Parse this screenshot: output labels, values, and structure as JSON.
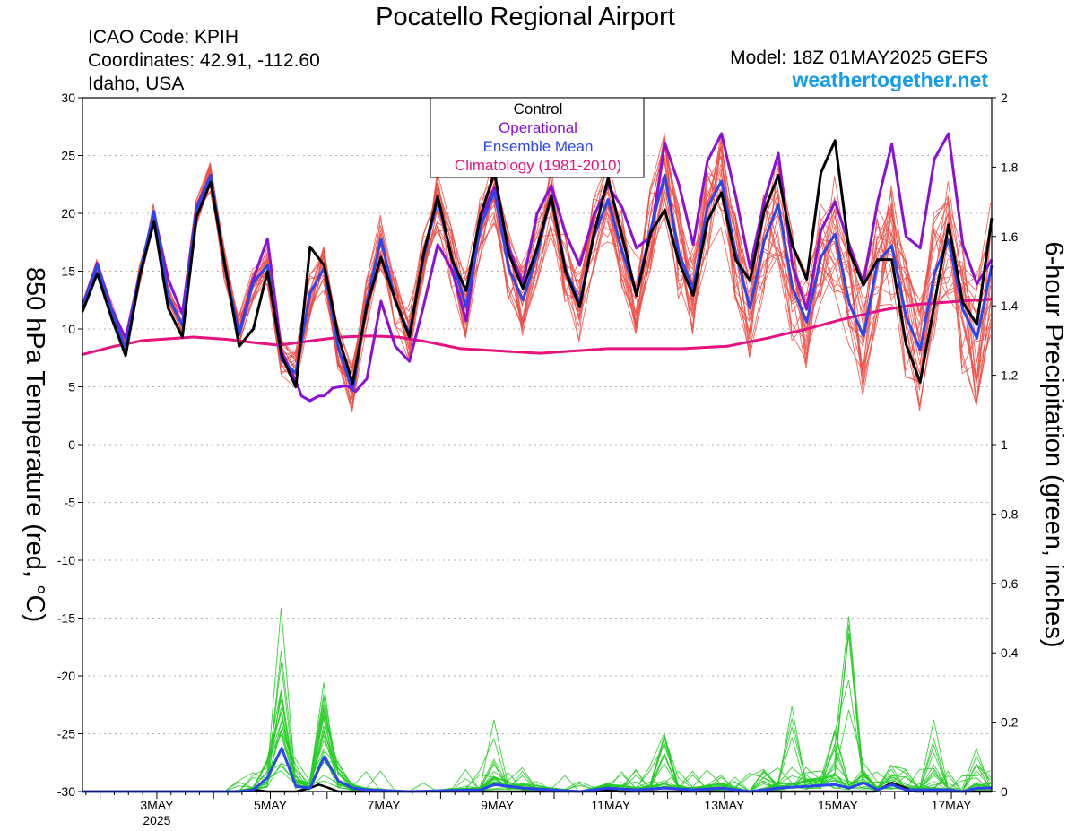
{
  "chart_data": {
    "type": "line",
    "title": "Pocatello Regional Airport",
    "info_lines": [
      "ICAO Code: KPIH",
      "Coordinates: 42.91, -112.60",
      "Idaho, USA"
    ],
    "model_label": "Model: 18Z 01MAY2025 GEFS",
    "site_label": "weathertogether.net",
    "ylabel_left": "850 hPa Temperature (red, °C)",
    "ylabel_right": "6-hour Precipitation (green, inches)",
    "ylim_left": [
      -30,
      30
    ],
    "ylim_right": [
      0,
      2
    ],
    "yticks_left": [
      "30",
      "25",
      "20",
      "15",
      "10",
      "5",
      "0",
      "-5",
      "-10",
      "-15",
      "-20",
      "-25",
      "-30"
    ],
    "yticks_right": [
      "2",
      "1.8",
      "1.6",
      "1.4",
      "1.2",
      "1",
      "0.8",
      "0.6",
      "0.4",
      "0.2",
      "0"
    ],
    "x_ticks": [
      {
        "label": "3MAY",
        "sub": "2025",
        "t": 1.25
      },
      {
        "label": "5MAY",
        "sub": "",
        "t": 3.25
      },
      {
        "label": "7MAY",
        "sub": "",
        "t": 5.25
      },
      {
        "label": "9MAY",
        "sub": "",
        "t": 7.25
      },
      {
        "label": "11MAY",
        "sub": "",
        "t": 9.25
      },
      {
        "label": "13MAY",
        "sub": "",
        "t": 11.25
      },
      {
        "label": "15MAY",
        "sub": "",
        "t": 13.25
      },
      {
        "label": "17MAY",
        "sub": "",
        "t": 15.25
      }
    ],
    "x_range_days": [
      -0.06,
      15.96
    ],
    "grid": "dotted horizontal",
    "legend": {
      "position": "top-center",
      "entries": [
        "Control",
        "Operational",
        "Ensemble Mean",
        "Climatology (1981-2010)"
      ]
    },
    "colors": {
      "control": "#000000",
      "operational": "#8a10d8",
      "mean": "#2b45f0",
      "climatology": "#e8117f",
      "members_temp": "#f04b43",
      "members_precip": "#22cc22",
      "site": "#139bf0"
    },
    "series": [
      {
        "name": "Control",
        "points": [
          [
            -0.06,
            11.5
          ],
          [
            0.2,
            14.8
          ],
          [
            0.45,
            11
          ],
          [
            0.7,
            7.7
          ],
          [
            0.95,
            14.6
          ],
          [
            1.2,
            19.3
          ],
          [
            1.45,
            11.8
          ],
          [
            1.7,
            9.3
          ],
          [
            1.95,
            19.7
          ],
          [
            2.2,
            22.7
          ],
          [
            2.45,
            15.5
          ],
          [
            2.7,
            8.5
          ],
          [
            2.95,
            10
          ],
          [
            3.2,
            15
          ],
          [
            3.45,
            7.7
          ],
          [
            3.7,
            5
          ],
          [
            3.95,
            17.1
          ],
          [
            4.2,
            15.5
          ],
          [
            4.45,
            9.3
          ],
          [
            4.7,
            5.3
          ],
          [
            4.95,
            12
          ],
          [
            5.2,
            16.2
          ],
          [
            5.45,
            12.5
          ],
          [
            5.7,
            9.3
          ],
          [
            5.95,
            16.5
          ],
          [
            6.2,
            21.5
          ],
          [
            6.45,
            16
          ],
          [
            6.7,
            13.3
          ],
          [
            6.95,
            19.8
          ],
          [
            7.2,
            23.5
          ],
          [
            7.45,
            16.5
          ],
          [
            7.7,
            13.5
          ],
          [
            7.95,
            17
          ],
          [
            8.2,
            21.5
          ],
          [
            8.45,
            15
          ],
          [
            8.7,
            11.9
          ],
          [
            8.95,
            18.2
          ],
          [
            9.2,
            23
          ],
          [
            9.45,
            18
          ],
          [
            9.7,
            12.9
          ],
          [
            9.95,
            18.3
          ],
          [
            10.2,
            20.3
          ],
          [
            10.45,
            15.8
          ],
          [
            10.7,
            12.9
          ],
          [
            10.95,
            19.3
          ],
          [
            11.2,
            21.8
          ],
          [
            11.45,
            16
          ],
          [
            11.7,
            14.2
          ],
          [
            11.95,
            20.2
          ],
          [
            12.2,
            23.3
          ],
          [
            12.45,
            17.2
          ],
          [
            12.7,
            14.3
          ],
          [
            12.95,
            23.5
          ],
          [
            13.2,
            26.3
          ],
          [
            13.45,
            16.7
          ],
          [
            13.7,
            13.8
          ],
          [
            13.95,
            16
          ],
          [
            14.2,
            16
          ],
          [
            14.45,
            8.7
          ],
          [
            14.7,
            5.4
          ],
          [
            14.95,
            12.2
          ],
          [
            15.2,
            19
          ],
          [
            15.45,
            12.3
          ],
          [
            15.7,
            10.4
          ],
          [
            15.96,
            19.6
          ]
        ]
      },
      {
        "name": "Operational",
        "points": [
          [
            -0.06,
            12
          ],
          [
            0.2,
            15.7
          ],
          [
            0.45,
            11.8
          ],
          [
            0.7,
            9.2
          ],
          [
            0.95,
            14.8
          ],
          [
            1.2,
            20
          ],
          [
            1.45,
            14.3
          ],
          [
            1.7,
            11.3
          ],
          [
            1.95,
            20.5
          ],
          [
            2.2,
            23.3
          ],
          [
            2.45,
            15.3
          ],
          [
            2.7,
            9.6
          ],
          [
            2.95,
            14.3
          ],
          [
            3.2,
            17.8
          ],
          [
            3.45,
            8
          ],
          [
            3.7,
            5.5
          ],
          [
            3.8,
            4.2
          ],
          [
            3.95,
            3.8
          ],
          [
            4.1,
            4.2
          ],
          [
            4.2,
            4.2
          ],
          [
            4.35,
            4.9
          ],
          [
            4.6,
            5.1
          ],
          [
            4.75,
            4.6
          ],
          [
            4.95,
            5.7
          ],
          [
            5.2,
            12.4
          ],
          [
            5.45,
            8.5
          ],
          [
            5.7,
            7.2
          ],
          [
            5.95,
            12
          ],
          [
            6.2,
            17.3
          ],
          [
            6.45,
            15.1
          ],
          [
            6.7,
            10.7
          ],
          [
            6.95,
            19.5
          ],
          [
            7.2,
            22.2
          ],
          [
            7.45,
            17
          ],
          [
            7.7,
            14
          ],
          [
            7.95,
            20
          ],
          [
            8.2,
            22.4
          ],
          [
            8.45,
            18.3
          ],
          [
            8.7,
            15.5
          ],
          [
            8.95,
            19.8
          ],
          [
            9.2,
            22.4
          ],
          [
            9.45,
            20.5
          ],
          [
            9.7,
            17
          ],
          [
            9.95,
            18
          ],
          [
            10.2,
            26.1
          ],
          [
            10.45,
            22.5
          ],
          [
            10.7,
            17.3
          ],
          [
            10.95,
            24.5
          ],
          [
            11.2,
            26.9
          ],
          [
            11.45,
            21.5
          ],
          [
            11.7,
            15.3
          ],
          [
            11.95,
            21
          ],
          [
            12.2,
            25.2
          ],
          [
            12.45,
            15.5
          ],
          [
            12.7,
            11.7
          ],
          [
            12.95,
            18.5
          ],
          [
            13.2,
            21
          ],
          [
            13.45,
            17.3
          ],
          [
            13.7,
            14
          ],
          [
            13.95,
            21
          ],
          [
            14.2,
            26
          ],
          [
            14.45,
            18
          ],
          [
            14.7,
            17
          ],
          [
            14.95,
            24.7
          ],
          [
            15.2,
            26.9
          ],
          [
            15.45,
            17.3
          ],
          [
            15.7,
            13.9
          ],
          [
            15.96,
            16
          ]
        ]
      },
      {
        "name": "Ensemble Mean",
        "points": [
          [
            -0.06,
            11.8
          ],
          [
            0.2,
            15.5
          ],
          [
            0.45,
            11.7
          ],
          [
            0.7,
            8.3
          ],
          [
            0.95,
            14.8
          ],
          [
            1.2,
            20.2
          ],
          [
            1.45,
            12.8
          ],
          [
            1.7,
            10.3
          ],
          [
            1.95,
            20.3
          ],
          [
            2.2,
            23.3
          ],
          [
            2.45,
            15.3
          ],
          [
            2.7,
            9.5
          ],
          [
            2.95,
            14
          ],
          [
            3.2,
            15.5
          ],
          [
            3.45,
            7.3
          ],
          [
            3.7,
            6.2
          ],
          [
            3.95,
            13.1
          ],
          [
            4.2,
            15.3
          ],
          [
            4.45,
            8.3
          ],
          [
            4.7,
            4.7
          ],
          [
            4.95,
            12.3
          ],
          [
            5.2,
            17.8
          ],
          [
            5.45,
            12.4
          ],
          [
            5.7,
            9.6
          ],
          [
            5.95,
            16.2
          ],
          [
            6.2,
            21.2
          ],
          [
            6.45,
            16
          ],
          [
            6.7,
            11.9
          ],
          [
            6.95,
            18.8
          ],
          [
            7.2,
            21.9
          ],
          [
            7.45,
            15.2
          ],
          [
            7.7,
            12.5
          ],
          [
            7.95,
            16.5
          ],
          [
            8.2,
            21.6
          ],
          [
            8.45,
            15.2
          ],
          [
            8.7,
            12.3
          ],
          [
            8.95,
            18
          ],
          [
            9.2,
            21.2
          ],
          [
            9.45,
            16.7
          ],
          [
            9.7,
            13.1
          ],
          [
            9.95,
            18.6
          ],
          [
            10.2,
            23.3
          ],
          [
            10.45,
            16.5
          ],
          [
            10.7,
            13.5
          ],
          [
            10.95,
            20.5
          ],
          [
            11.2,
            22.8
          ],
          [
            11.45,
            16.6
          ],
          [
            11.7,
            11.8
          ],
          [
            11.95,
            17.6
          ],
          [
            12.2,
            20.8
          ],
          [
            12.45,
            13.6
          ],
          [
            12.7,
            10.6
          ],
          [
            12.95,
            16.2
          ],
          [
            13.2,
            18.2
          ],
          [
            13.45,
            12.2
          ],
          [
            13.7,
            9.4
          ],
          [
            13.95,
            15.8
          ],
          [
            14.2,
            17.2
          ],
          [
            14.45,
            11.1
          ],
          [
            14.7,
            8.2
          ],
          [
            14.95,
            14.8
          ],
          [
            15.2,
            17.7
          ],
          [
            15.45,
            11.7
          ],
          [
            15.7,
            9.2
          ],
          [
            15.96,
            15.5
          ]
        ]
      },
      {
        "name": "Climatology (1981-2010)",
        "points": [
          [
            -0.06,
            7.8
          ],
          [
            0.5,
            8.5
          ],
          [
            1,
            9
          ],
          [
            1.9,
            9.3
          ],
          [
            2.5,
            9.1
          ],
          [
            3,
            8.8
          ],
          [
            3.4,
            8.6
          ],
          [
            4,
            9
          ],
          [
            4.5,
            9.3
          ],
          [
            5,
            9.4
          ],
          [
            5.5,
            9.3
          ],
          [
            6,
            8.9
          ],
          [
            6.6,
            8.3
          ],
          [
            7.3,
            8.1
          ],
          [
            8,
            7.9
          ],
          [
            8.6,
            8.1
          ],
          [
            9.2,
            8.3
          ],
          [
            10,
            8.3
          ],
          [
            10.5,
            8.3
          ],
          [
            11.3,
            8.5
          ],
          [
            12,
            9.2
          ],
          [
            12.7,
            10
          ],
          [
            13.3,
            10.8
          ],
          [
            14,
            11.6
          ],
          [
            14.6,
            12.1
          ],
          [
            15.4,
            12.4
          ],
          [
            15.96,
            12.6
          ]
        ]
      }
    ],
    "precip_series": [
      {
        "name": "Control",
        "points": [
          [
            -0.06,
            0
          ],
          [
            2.7,
            0
          ],
          [
            2.95,
            0.005
          ],
          [
            3.2,
            0
          ],
          [
            3.7,
            0
          ],
          [
            3.95,
            0.01
          ],
          [
            4.1,
            0.02
          ],
          [
            4.2,
            0.015
          ],
          [
            4.45,
            0
          ],
          [
            9.0,
            0
          ],
          [
            9.2,
            0.005
          ],
          [
            9.4,
            0
          ],
          [
            13.9,
            0
          ],
          [
            14.2,
            0.025
          ],
          [
            14.45,
            0.01
          ],
          [
            14.6,
            0
          ],
          [
            15.96,
            0
          ]
        ]
      },
      {
        "name": "Ensemble Mean",
        "points": [
          [
            -0.06,
            0
          ],
          [
            2.7,
            0
          ],
          [
            2.95,
            0.005
          ],
          [
            3.2,
            0.04
          ],
          [
            3.45,
            0.125
          ],
          [
            3.7,
            0.015
          ],
          [
            3.95,
            0.01
          ],
          [
            4.2,
            0.1
          ],
          [
            4.45,
            0.03
          ],
          [
            4.7,
            0.01
          ],
          [
            4.95,
            0.005
          ],
          [
            5.7,
            0
          ],
          [
            6.95,
            0.005
          ],
          [
            7.2,
            0.02
          ],
          [
            7.45,
            0.015
          ],
          [
            7.7,
            0.01
          ],
          [
            8.2,
            0.005
          ],
          [
            8.7,
            0
          ],
          [
            9.2,
            0.01
          ],
          [
            9.7,
            0.005
          ],
          [
            10.2,
            0.01
          ],
          [
            10.7,
            0.005
          ],
          [
            11.2,
            0.01
          ],
          [
            11.7,
            0
          ],
          [
            12.2,
            0.01
          ],
          [
            12.7,
            0.015
          ],
          [
            13.2,
            0.02
          ],
          [
            13.45,
            0.01
          ],
          [
            13.7,
            0.025
          ],
          [
            13.95,
            0.005
          ],
          [
            14.2,
            0.02
          ],
          [
            14.45,
            0.005
          ],
          [
            14.7,
            0.005
          ],
          [
            15.2,
            0.005
          ],
          [
            15.45,
            0
          ],
          [
            15.7,
            0.01
          ],
          [
            15.96,
            0.01
          ]
        ]
      }
    ]
  }
}
